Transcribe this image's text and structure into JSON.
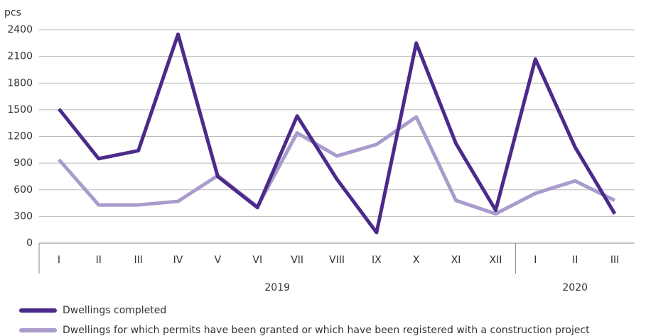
{
  "chart_data": {
    "type": "line",
    "y_unit": "pcs",
    "groups": [
      {
        "label": "2019",
        "categories": [
          "I",
          "II",
          "III",
          "IV",
          "V",
          "VI",
          "VII",
          "VIII",
          "IX",
          "X",
          "XI",
          "XII"
        ]
      },
      {
        "label": "2020",
        "categories": [
          "I",
          "II",
          "III"
        ]
      }
    ],
    "series": [
      {
        "name": "Dwellings completed",
        "color": "#4b2a8a",
        "values": [
          1510,
          950,
          1040,
          2350,
          750,
          400,
          1430,
          720,
          120,
          2250,
          1120,
          370,
          2070,
          1080,
          330
        ]
      },
      {
        "name": "Dwellings for which permits have been granted or which have been registered with a construction project",
        "color": "#a99bcc",
        "values": [
          940,
          430,
          430,
          470,
          760,
          410,
          1240,
          980,
          1110,
          1420,
          480,
          330,
          560,
          700,
          480
        ]
      }
    ],
    "ylim": [
      0,
      2400
    ],
    "yticks": [
      0,
      300,
      600,
      900,
      1200,
      1500,
      1800,
      2100,
      2400
    ],
    "grid": true
  }
}
